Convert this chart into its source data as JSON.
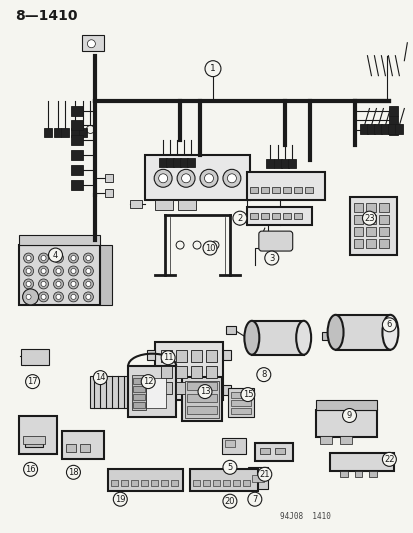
{
  "title": "8—1410",
  "bg_color": "#f5f5f0",
  "line_color": "#1a1a1a",
  "fig_width": 4.14,
  "fig_height": 5.33,
  "dpi": 100,
  "bottom_label": "94J08  1410"
}
